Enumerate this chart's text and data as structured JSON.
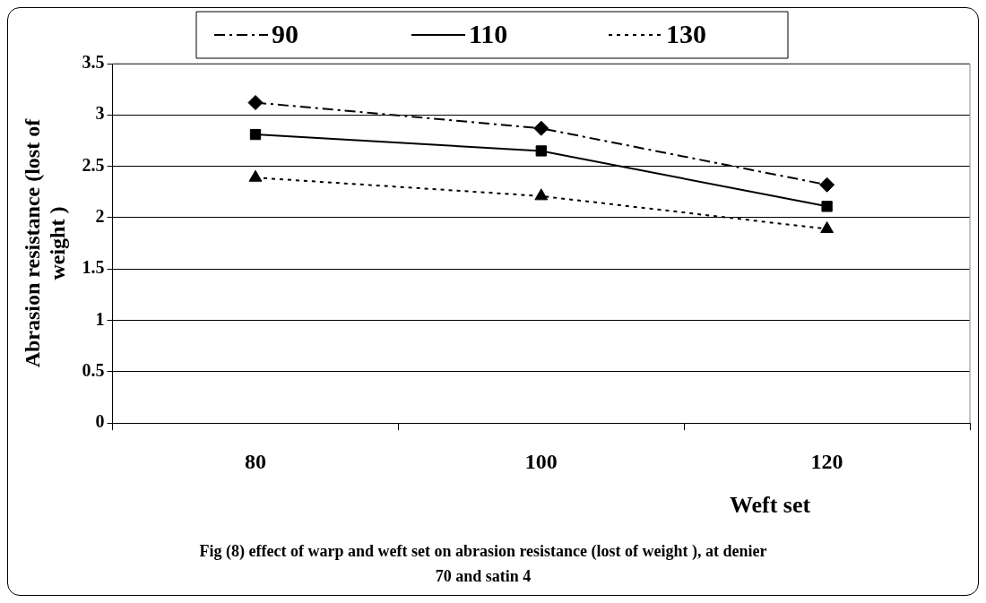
{
  "chart_data": {
    "type": "line",
    "categories": [
      "80",
      "100",
      "120"
    ],
    "xlabel": "Weft set",
    "ylabel": "Abrasion resistance (lost of weight )",
    "ylim": [
      0,
      3.5
    ],
    "yticks": [
      0,
      0.5,
      1,
      1.5,
      2,
      2.5,
      3,
      3.5
    ],
    "grid": "y",
    "legend": "top",
    "series": [
      {
        "name": "90",
        "color": "#000000",
        "marker": "diamond",
        "line_style": "dashed",
        "values": [
          3.12,
          2.87,
          2.32
        ]
      },
      {
        "name": "110",
        "color": "#000000",
        "marker": "square",
        "line_style": "solid",
        "values": [
          2.81,
          2.65,
          2.11
        ]
      },
      {
        "name": "130",
        "color": "#000000",
        "marker": "triangle",
        "line_style": "dotted",
        "values": [
          2.39,
          2.21,
          1.89
        ]
      }
    ],
    "annotations": [
      "Fig (8) effect of warp and weft set on abrasion resistance (lost of weight ), at denier 70 and satin 4"
    ]
  }
}
